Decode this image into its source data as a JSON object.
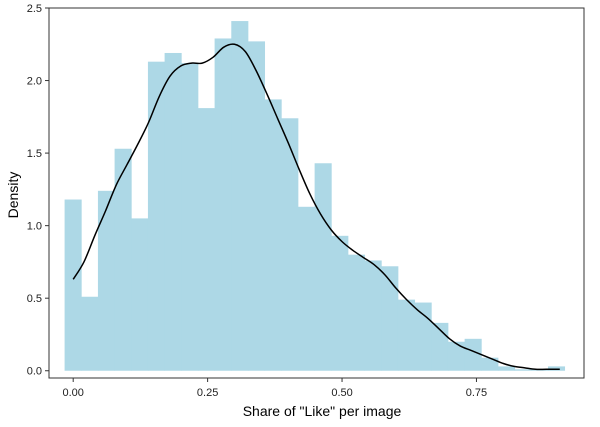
{
  "chart_data": {
    "type": "bar",
    "subtype": "histogram-with-density",
    "title": "",
    "xlabel": "Share of \"Like\" per image",
    "ylabel": "Density",
    "xlim": [
      -0.045,
      0.95
    ],
    "ylim": [
      -0.05,
      2.5
    ],
    "xticks": [
      0.0,
      0.25,
      0.5,
      0.75
    ],
    "xtick_labels": [
      "0.00",
      "0.25",
      "0.50",
      "0.75"
    ],
    "yticks": [
      0.0,
      0.5,
      1.0,
      1.5,
      2.0,
      2.5
    ],
    "ytick_labels": [
      "0.0",
      "0.5",
      "1.0",
      "1.5",
      "2.0",
      "2.5"
    ],
    "grid": false,
    "legend": "none",
    "bar_color": "#add8e6",
    "line_color": "#000000",
    "bin_width": 0.031,
    "bins": [
      {
        "x0": -0.016,
        "x1": 0.015,
        "value": 1.18
      },
      {
        "x0": 0.015,
        "x1": 0.046,
        "value": 0.51
      },
      {
        "x0": 0.046,
        "x1": 0.077,
        "value": 1.24
      },
      {
        "x0": 0.077,
        "x1": 0.108,
        "value": 1.53
      },
      {
        "x0": 0.108,
        "x1": 0.139,
        "value": 1.05
      },
      {
        "x0": 0.139,
        "x1": 0.17,
        "value": 2.13
      },
      {
        "x0": 0.17,
        "x1": 0.201,
        "value": 2.19
      },
      {
        "x0": 0.201,
        "x1": 0.232,
        "value": 2.12
      },
      {
        "x0": 0.232,
        "x1": 0.263,
        "value": 1.81
      },
      {
        "x0": 0.263,
        "x1": 0.294,
        "value": 2.29
      },
      {
        "x0": 0.294,
        "x1": 0.325,
        "value": 2.41
      },
      {
        "x0": 0.325,
        "x1": 0.356,
        "value": 2.27
      },
      {
        "x0": 0.356,
        "x1": 0.387,
        "value": 1.87
      },
      {
        "x0": 0.387,
        "x1": 0.418,
        "value": 1.74
      },
      {
        "x0": 0.418,
        "x1": 0.449,
        "value": 1.13
      },
      {
        "x0": 0.449,
        "x1": 0.48,
        "value": 1.43
      },
      {
        "x0": 0.48,
        "x1": 0.511,
        "value": 0.93
      },
      {
        "x0": 0.511,
        "x1": 0.542,
        "value": 0.8
      },
      {
        "x0": 0.542,
        "x1": 0.573,
        "value": 0.76
      },
      {
        "x0": 0.573,
        "x1": 0.604,
        "value": 0.72
      },
      {
        "x0": 0.604,
        "x1": 0.635,
        "value": 0.49
      },
      {
        "x0": 0.635,
        "x1": 0.666,
        "value": 0.47
      },
      {
        "x0": 0.666,
        "x1": 0.697,
        "value": 0.33
      },
      {
        "x0": 0.697,
        "x1": 0.728,
        "value": 0.2
      },
      {
        "x0": 0.728,
        "x1": 0.759,
        "value": 0.22
      },
      {
        "x0": 0.759,
        "x1": 0.79,
        "value": 0.09
      },
      {
        "x0": 0.79,
        "x1": 0.821,
        "value": 0.03
      },
      {
        "x0": 0.821,
        "x1": 0.852,
        "value": 0.01
      },
      {
        "x0": 0.852,
        "x1": 0.883,
        "value": 0.01
      },
      {
        "x0": 0.883,
        "x1": 0.914,
        "value": 0.03
      }
    ],
    "density_curve": {
      "x": [
        0.0,
        0.02,
        0.04,
        0.06,
        0.08,
        0.1,
        0.12,
        0.14,
        0.16,
        0.18,
        0.2,
        0.22,
        0.24,
        0.26,
        0.28,
        0.3,
        0.32,
        0.34,
        0.36,
        0.38,
        0.4,
        0.42,
        0.44,
        0.46,
        0.48,
        0.5,
        0.52,
        0.54,
        0.56,
        0.58,
        0.6,
        0.62,
        0.64,
        0.66,
        0.68,
        0.7,
        0.72,
        0.74,
        0.76,
        0.78,
        0.8,
        0.82,
        0.84,
        0.86,
        0.88,
        0.905
      ],
      "y": [
        0.63,
        0.75,
        0.93,
        1.1,
        1.28,
        1.42,
        1.56,
        1.71,
        1.89,
        2.03,
        2.1,
        2.12,
        2.12,
        2.16,
        2.23,
        2.25,
        2.2,
        2.07,
        1.91,
        1.74,
        1.57,
        1.39,
        1.22,
        1.08,
        0.97,
        0.89,
        0.83,
        0.78,
        0.73,
        0.66,
        0.57,
        0.49,
        0.42,
        0.36,
        0.29,
        0.22,
        0.17,
        0.14,
        0.11,
        0.08,
        0.05,
        0.03,
        0.02,
        0.01,
        0.01,
        0.01
      ]
    }
  }
}
